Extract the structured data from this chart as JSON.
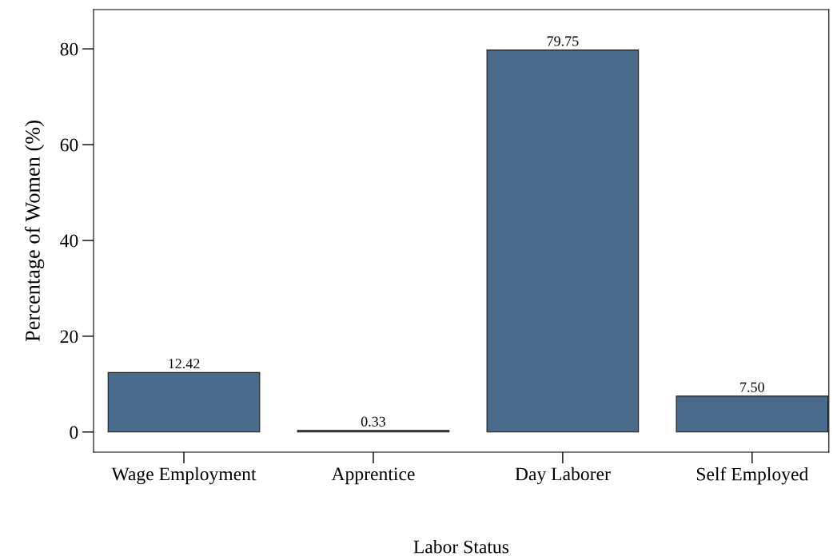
{
  "chart_data": {
    "type": "bar",
    "xlabel": "Labor Status",
    "ylabel": "Percentage of Women (%)",
    "categories": [
      "Wage Employment",
      "Apprentice",
      "Day Laborer",
      "Self Employed"
    ],
    "values": [
      12.42,
      0.33,
      79.75,
      7.5
    ],
    "value_labels": [
      "12.42",
      "0.33",
      "79.75",
      "7.50"
    ],
    "color": "#4a6a8c",
    "ylim": [
      -4.2,
      88.2
    ],
    "yticks": [
      0,
      20,
      40,
      60,
      80
    ],
    "grid": false,
    "legend": false
  }
}
